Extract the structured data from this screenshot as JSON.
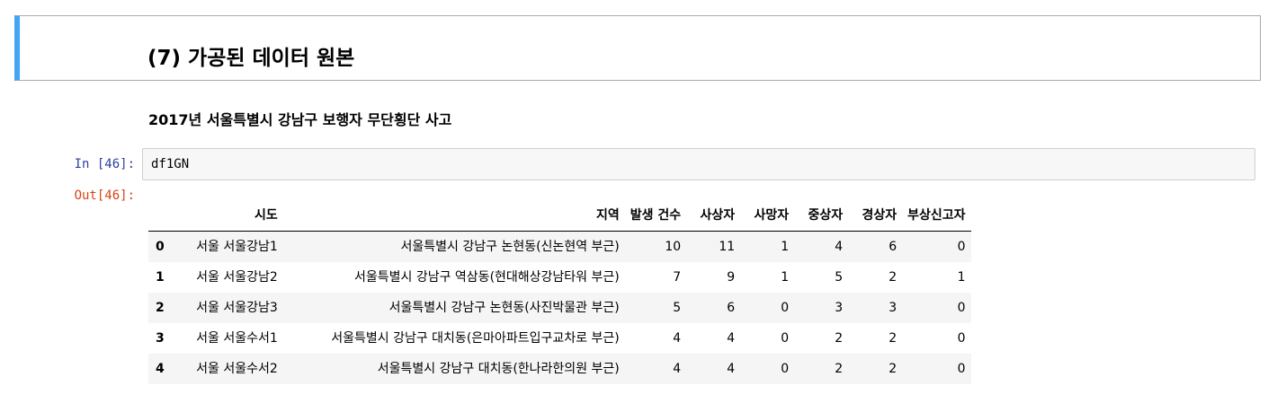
{
  "heading": "(7) 가공된 데이터 원본",
  "subheading": "2017년 서울특별시 강남구 보행자 무단횡단 사고",
  "cell": {
    "in_prompt": "In [46]:",
    "out_prompt": "Out[46]:",
    "code": "df1GN"
  },
  "dataframe": {
    "columns": [
      "시도",
      "지역",
      "발생 건수",
      "사상자",
      "사망자",
      "중상자",
      "경상자",
      "부상신고자"
    ],
    "rows": [
      {
        "index": "0",
        "sido": "서울 서울강남1",
        "region": "서울특별시 강남구 논현동(신논현역 부근)",
        "occurrences": "10",
        "casualties": "11",
        "deaths": "1",
        "serious": "4",
        "minor": "6",
        "reported": "0"
      },
      {
        "index": "1",
        "sido": "서울 서울강남2",
        "region": "서울특별시 강남구 역삼동(현대해상강남타워 부근)",
        "occurrences": "7",
        "casualties": "9",
        "deaths": "1",
        "serious": "5",
        "minor": "2",
        "reported": "1"
      },
      {
        "index": "2",
        "sido": "서울 서울강남3",
        "region": "서울특별시 강남구 논현동(사진박물관 부근)",
        "occurrences": "5",
        "casualties": "6",
        "deaths": "0",
        "serious": "3",
        "minor": "3",
        "reported": "0"
      },
      {
        "index": "3",
        "sido": "서울 서울수서1",
        "region": "서울특별시 강남구 대치동(은마아파트입구교차로 부근)",
        "occurrences": "4",
        "casualties": "4",
        "deaths": "0",
        "serious": "2",
        "minor": "2",
        "reported": "0"
      },
      {
        "index": "4",
        "sido": "서울 서울수서2",
        "region": "서울특별시 강남구 대치동(한나라한의원 부근)",
        "occurrences": "4",
        "casualties": "4",
        "deaths": "0",
        "serious": "2",
        "minor": "2",
        "reported": "0"
      }
    ]
  },
  "colors": {
    "selected_cell_bar": "#42a5f5",
    "in_prompt": "#303f9f",
    "out_prompt": "#d84315",
    "input_background": "#f7f7f7",
    "row_stripe": "#f5f5f5"
  }
}
